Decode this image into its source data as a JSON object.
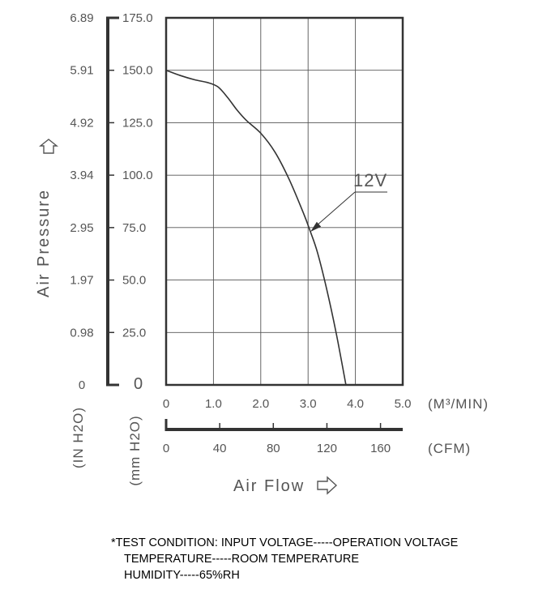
{
  "chart_data": {
    "type": "line",
    "title": "",
    "xlabel": "Air Flow",
    "ylabel": "Air Pressure",
    "x_unit_primary": "(M³/MIN)",
    "x_unit_secondary": "(CFM)",
    "y_unit_primary": "(mm H2O)",
    "y_unit_secondary": "(IN H2O)",
    "xlim": [
      0,
      5.0
    ],
    "ylim": [
      0,
      175.0
    ],
    "grid": true,
    "x_ticks": [
      "0",
      "1.0",
      "2.0",
      "3.0",
      "4.0",
      "5.0"
    ],
    "y_ticks": [
      "0",
      "25.0",
      "50.0",
      "75.0",
      "100.0",
      "125.0",
      "150.0",
      "175.0"
    ],
    "y_ticks_secondary": [
      "0",
      "0.98",
      "1.97",
      "2.95",
      "3.94",
      "4.92",
      "5.91",
      "6.89"
    ],
    "x_ticks_secondary": [
      "0",
      "40",
      "80",
      "120",
      "160"
    ],
    "x_ticks_secondary_values": [
      0,
      40,
      80,
      120,
      160
    ],
    "series": [
      {
        "name": "12V",
        "x": [
          0,
          0.3,
          0.6,
          0.9,
          1.1,
          1.3,
          1.5,
          1.7,
          2.0,
          2.3,
          2.6,
          2.9,
          3.05,
          3.2,
          3.4,
          3.6,
          3.8
        ],
        "y": [
          150.0,
          147.5,
          145.5,
          144.0,
          142.0,
          137.0,
          131.0,
          126.0,
          120.0,
          111.0,
          98.0,
          82.0,
          73.0,
          63.0,
          45.0,
          24.0,
          0
        ]
      }
    ]
  },
  "notes": [
    "*TEST CONDITION: INPUT VOLTAGE-----OPERATION VOLTAGE",
    "TEMPERATURE-----ROOM TEMPERATURE",
    "HUMIDITY-----65%RH"
  ]
}
